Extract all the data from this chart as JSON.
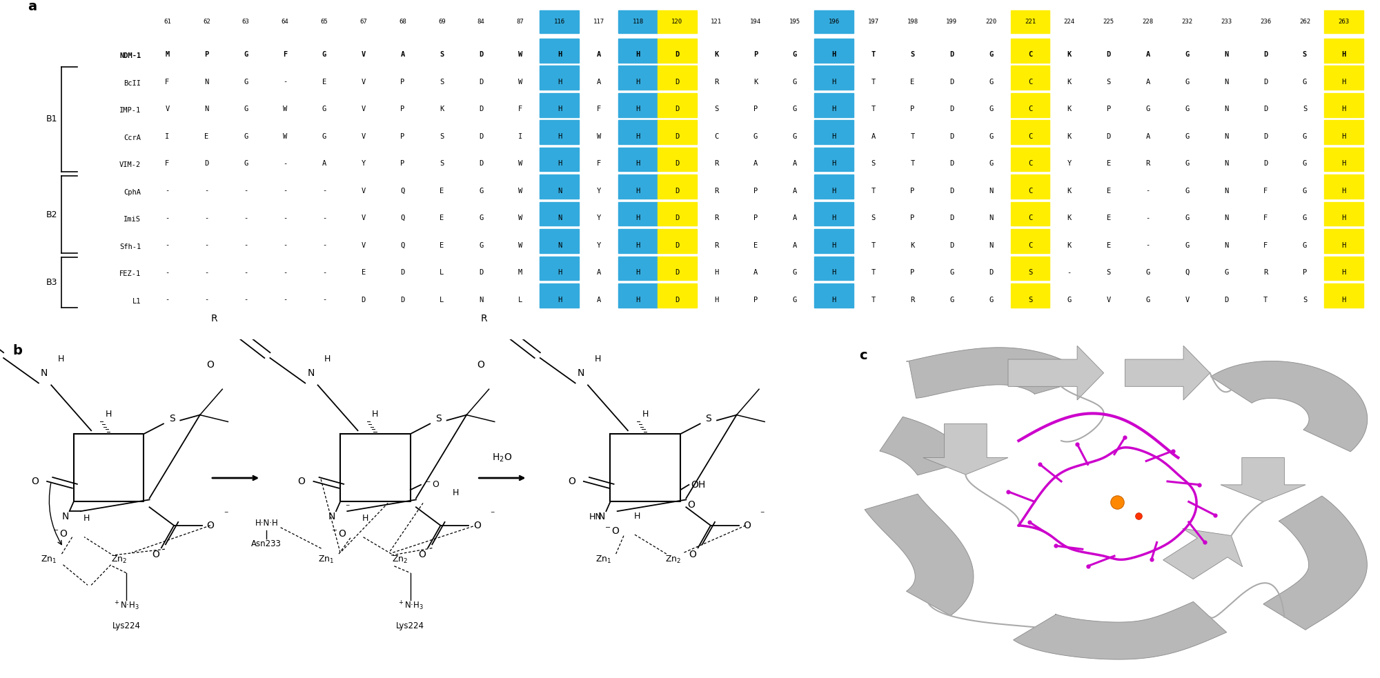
{
  "panel_a": {
    "col_numbers": [
      "61",
      "62",
      "63",
      "64",
      "65",
      "67",
      "68",
      "69",
      "84",
      "87",
      "116",
      "117",
      "118",
      "120",
      "121",
      "194",
      "195",
      "196",
      "197",
      "198",
      "199",
      "220",
      "221",
      "224",
      "225",
      "228",
      "232",
      "233",
      "236",
      "262",
      "263"
    ],
    "rows": [
      {
        "label": "NDM-1",
        "bold": true,
        "seq": [
          "M",
          "P",
          "G",
          "F",
          "G",
          "V",
          "A",
          "S",
          "D",
          "W",
          "H",
          "A",
          "H",
          "D",
          "K",
          "P",
          "G",
          "H",
          "T",
          "S",
          "D",
          "G",
          "C",
          "K",
          "D",
          "A",
          "G",
          "N",
          "D",
          "S",
          "H"
        ]
      },
      {
        "label": "BcII",
        "bold": false,
        "seq": [
          "F",
          "N",
          "G",
          "-",
          "E",
          "V",
          "P",
          "S",
          "D",
          "W",
          "H",
          "A",
          "H",
          "D",
          "R",
          "K",
          "G",
          "H",
          "T",
          "E",
          "D",
          "G",
          "C",
          "K",
          "S",
          "A",
          "G",
          "N",
          "D",
          "G",
          "H"
        ]
      },
      {
        "label": "IMP-1",
        "bold": false,
        "seq": [
          "V",
          "N",
          "G",
          "W",
          "G",
          "V",
          "P",
          "K",
          "D",
          "F",
          "H",
          "F",
          "H",
          "D",
          "S",
          "P",
          "G",
          "H",
          "T",
          "P",
          "D",
          "G",
          "C",
          "K",
          "P",
          "G",
          "G",
          "N",
          "D",
          "S",
          "H"
        ]
      },
      {
        "label": "CcrA",
        "bold": false,
        "seq": [
          "I",
          "E",
          "G",
          "W",
          "G",
          "V",
          "P",
          "S",
          "D",
          "I",
          "H",
          "W",
          "H",
          "D",
          "C",
          "G",
          "G",
          "H",
          "A",
          "T",
          "D",
          "G",
          "C",
          "K",
          "D",
          "A",
          "G",
          "N",
          "D",
          "G",
          "H"
        ]
      },
      {
        "label": "VIM-2",
        "bold": false,
        "seq": [
          "F",
          "D",
          "G",
          "-",
          "A",
          "Y",
          "P",
          "S",
          "D",
          "W",
          "H",
          "F",
          "H",
          "D",
          "R",
          "A",
          "A",
          "H",
          "S",
          "T",
          "D",
          "G",
          "C",
          "Y",
          "E",
          "R",
          "G",
          "N",
          "D",
          "G",
          "H"
        ]
      },
      {
        "label": "CphA",
        "bold": false,
        "seq": [
          "-",
          "-",
          "-",
          "-",
          "-",
          "V",
          "Q",
          "E",
          "G",
          "W",
          "N",
          "Y",
          "H",
          "D",
          "R",
          "P",
          "A",
          "H",
          "T",
          "P",
          "D",
          "N",
          "C",
          "K",
          "E",
          "-",
          "G",
          "N",
          "F",
          "G",
          "H"
        ]
      },
      {
        "label": "ImiS",
        "bold": false,
        "seq": [
          "-",
          "-",
          "-",
          "-",
          "-",
          "V",
          "Q",
          "E",
          "G",
          "W",
          "N",
          "Y",
          "H",
          "D",
          "R",
          "P",
          "A",
          "H",
          "S",
          "P",
          "D",
          "N",
          "C",
          "K",
          "E",
          "-",
          "G",
          "N",
          "F",
          "G",
          "H"
        ]
      },
      {
        "label": "Sfh-1",
        "bold": false,
        "seq": [
          "-",
          "-",
          "-",
          "-",
          "-",
          "V",
          "Q",
          "E",
          "G",
          "W",
          "N",
          "Y",
          "H",
          "D",
          "R",
          "E",
          "A",
          "H",
          "T",
          "K",
          "D",
          "N",
          "C",
          "K",
          "E",
          "-",
          "G",
          "N",
          "F",
          "G",
          "H"
        ]
      },
      {
        "label": "FEZ-1",
        "bold": false,
        "seq": [
          "-",
          "-",
          "-",
          "-",
          "-",
          "E",
          "D",
          "L",
          "D",
          "M",
          "H",
          "A",
          "H",
          "D",
          "H",
          "A",
          "G",
          "H",
          "T",
          "P",
          "G",
          "D",
          "S",
          "-",
          "S",
          "G",
          "Q",
          "G",
          "R",
          "P",
          "H"
        ]
      },
      {
        "label": "L1",
        "bold": false,
        "seq": [
          "-",
          "-",
          "-",
          "-",
          "-",
          "D",
          "D",
          "L",
          "N",
          "L",
          "H",
          "A",
          "H",
          "D",
          "H",
          "P",
          "G",
          "H",
          "T",
          "R",
          "G",
          "G",
          "S",
          "G",
          "V",
          "G",
          "V",
          "D",
          "T",
          "S",
          "H"
        ]
      }
    ],
    "hi_blue": [
      10,
      12,
      17
    ],
    "hi_yellow": [
      13,
      22,
      30
    ],
    "blue": "#33AADD",
    "yellow": "#FFEE00",
    "groups": [
      {
        "name": "B1",
        "start": 1,
        "end": 4
      },
      {
        "name": "B2",
        "start": 5,
        "end": 7
      },
      {
        "name": "B3",
        "start": 8,
        "end": 9
      }
    ]
  }
}
